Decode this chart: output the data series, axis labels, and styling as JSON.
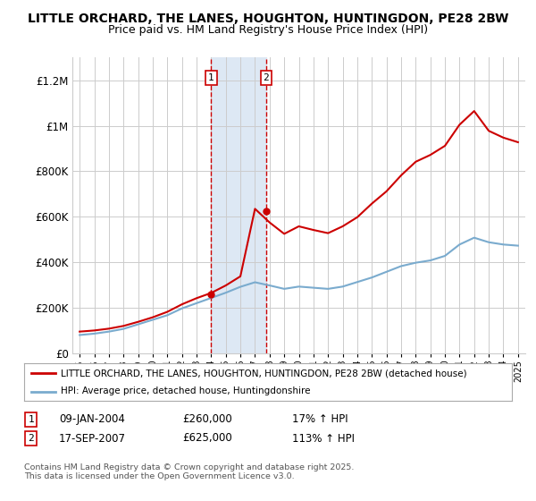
{
  "title": "LITTLE ORCHARD, THE LANES, HOUGHTON, HUNTINGDON, PE28 2BW",
  "subtitle": "Price paid vs. HM Land Registry's House Price Index (HPI)",
  "title_fontsize": 10,
  "subtitle_fontsize": 9,
  "bg_color": "#ffffff",
  "plot_bg_color": "#ffffff",
  "grid_color": "#cccccc",
  "red_color": "#cc0000",
  "blue_color": "#7aabce",
  "highlight_bg": "#dde8f4",
  "annotation1": {
    "label": "1",
    "date": "09-JAN-2004",
    "price": "£260,000",
    "pct": "17% ↑ HPI"
  },
  "annotation2": {
    "label": "2",
    "date": "17-SEP-2007",
    "price": "£625,000",
    "pct": "113% ↑ HPI"
  },
  "legend_line1": "LITTLE ORCHARD, THE LANES, HOUGHTON, HUNTINGDON, PE28 2BW (detached house)",
  "legend_line2": "HPI: Average price, detached house, Huntingdonshire",
  "footer": "Contains HM Land Registry data © Crown copyright and database right 2025.\nThis data is licensed under the Open Government Licence v3.0.",
  "ylim": [
    0,
    1300000
  ],
  "years": [
    1995,
    1996,
    1997,
    1998,
    1999,
    2000,
    2001,
    2002,
    2003,
    2004,
    2005,
    2006,
    2007,
    2008,
    2009,
    2010,
    2011,
    2012,
    2013,
    2014,
    2015,
    2016,
    2017,
    2018,
    2019,
    2020,
    2021,
    2022,
    2023,
    2024,
    2025
  ],
  "red_values": [
    95000,
    100000,
    108000,
    120000,
    138000,
    158000,
    182000,
    215000,
    242000,
    265000,
    298000,
    338000,
    635000,
    575000,
    525000,
    558000,
    542000,
    528000,
    558000,
    598000,
    658000,
    712000,
    782000,
    842000,
    872000,
    912000,
    1005000,
    1065000,
    978000,
    948000,
    928000
  ],
  "blue_values": [
    80000,
    86000,
    95000,
    107000,
    127000,
    147000,
    167000,
    197000,
    220000,
    243000,
    266000,
    292000,
    312000,
    298000,
    283000,
    293000,
    288000,
    283000,
    293000,
    313000,
    333000,
    358000,
    383000,
    398000,
    408000,
    428000,
    478000,
    508000,
    488000,
    478000,
    473000
  ],
  "yticks": [
    0,
    200000,
    400000,
    600000,
    800000,
    1000000,
    1200000
  ],
  "ytick_labels": [
    "£0",
    "£200K",
    "£400K",
    "£600K",
    "£800K",
    "£1M",
    "£1.2M"
  ]
}
